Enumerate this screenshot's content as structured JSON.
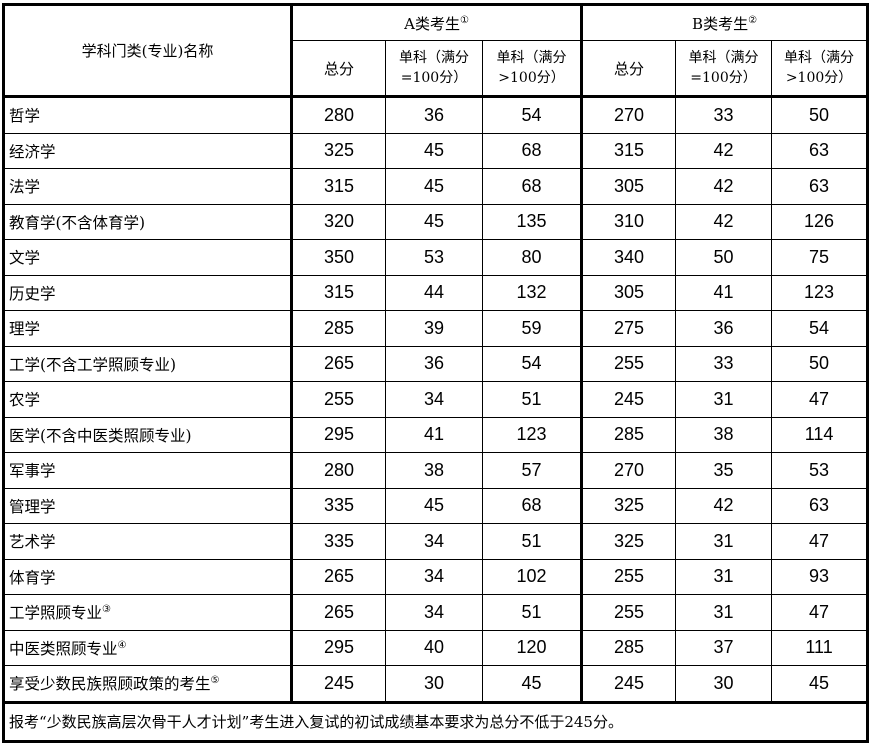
{
  "header": {
    "name_col": "学科门类(专业)名称",
    "group_a": "A类考生",
    "group_a_note": "①",
    "group_b": "B类考生",
    "group_b_note": "②",
    "total": "总分",
    "single_100_line1": "单科（满分",
    "single_100_line2": "=100分）",
    "single_gt100_line1": "单科（满分",
    "single_gt100_line2": ">100分）"
  },
  "rows": [
    {
      "name": "哲学",
      "note": "",
      "a": [
        "280",
        "36",
        "54"
      ],
      "b": [
        "270",
        "33",
        "50"
      ]
    },
    {
      "name": "经济学",
      "note": "",
      "a": [
        "325",
        "45",
        "68"
      ],
      "b": [
        "315",
        "42",
        "63"
      ]
    },
    {
      "name": "法学",
      "note": "",
      "a": [
        "315",
        "45",
        "68"
      ],
      "b": [
        "305",
        "42",
        "63"
      ]
    },
    {
      "name": "教育学(不含体育学)",
      "note": "",
      "a": [
        "320",
        "45",
        "135"
      ],
      "b": [
        "310",
        "42",
        "126"
      ]
    },
    {
      "name": "文学",
      "note": "",
      "a": [
        "350",
        "53",
        "80"
      ],
      "b": [
        "340",
        "50",
        "75"
      ]
    },
    {
      "name": "历史学",
      "note": "",
      "a": [
        "315",
        "44",
        "132"
      ],
      "b": [
        "305",
        "41",
        "123"
      ]
    },
    {
      "name": "理学",
      "note": "",
      "a": [
        "285",
        "39",
        "59"
      ],
      "b": [
        "275",
        "36",
        "54"
      ]
    },
    {
      "name": "工学(不含工学照顾专业)",
      "note": "",
      "a": [
        "265",
        "36",
        "54"
      ],
      "b": [
        "255",
        "33",
        "50"
      ]
    },
    {
      "name": "农学",
      "note": "",
      "a": [
        "255",
        "34",
        "51"
      ],
      "b": [
        "245",
        "31",
        "47"
      ]
    },
    {
      "name": "医学(不含中医类照顾专业)",
      "note": "",
      "a": [
        "295",
        "41",
        "123"
      ],
      "b": [
        "285",
        "38",
        "114"
      ]
    },
    {
      "name": "军事学",
      "note": "",
      "a": [
        "280",
        "38",
        "57"
      ],
      "b": [
        "270",
        "35",
        "53"
      ]
    },
    {
      "name": "管理学",
      "note": "",
      "a": [
        "335",
        "45",
        "68"
      ],
      "b": [
        "325",
        "42",
        "63"
      ]
    },
    {
      "name": "艺术学",
      "note": "",
      "a": [
        "335",
        "34",
        "51"
      ],
      "b": [
        "325",
        "31",
        "47"
      ]
    },
    {
      "name": "体育学",
      "note": "",
      "a": [
        "265",
        "34",
        "102"
      ],
      "b": [
        "255",
        "31",
        "93"
      ]
    },
    {
      "name": "工学照顾专业",
      "note": "③",
      "a": [
        "265",
        "34",
        "51"
      ],
      "b": [
        "255",
        "31",
        "47"
      ]
    },
    {
      "name": "中医类照顾专业",
      "note": "④",
      "a": [
        "295",
        "40",
        "120"
      ],
      "b": [
        "285",
        "37",
        "111"
      ]
    },
    {
      "name": "享受少数民族照顾政策的考生",
      "note": "⑤",
      "a": [
        "245",
        "30",
        "45"
      ],
      "b": [
        "245",
        "30",
        "45"
      ]
    }
  ],
  "footer": "报考“少数民族高层次骨干人才计划”考生进入复试的初试成绩基本要求为总分不低于245分。"
}
